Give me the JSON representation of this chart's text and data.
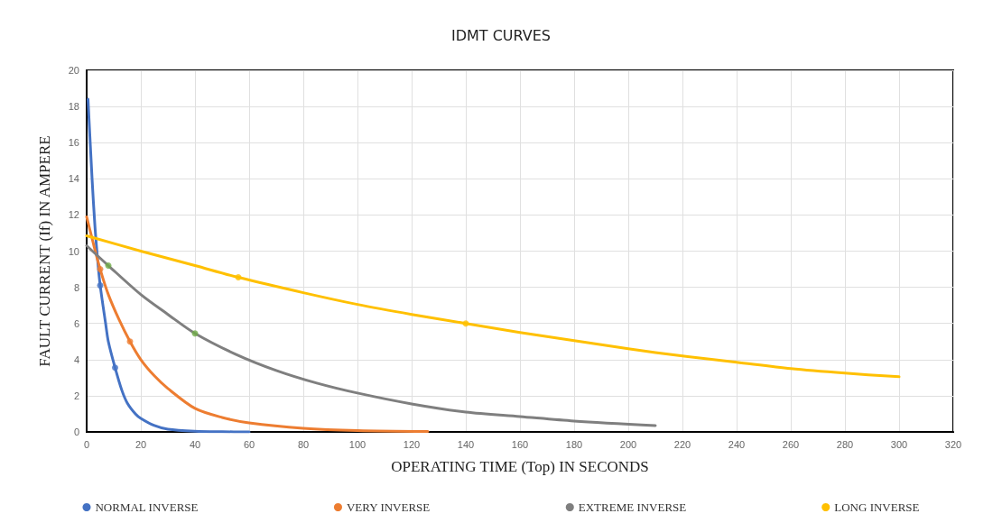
{
  "chart_data": {
    "type": "line",
    "title": "IDMT CURVES",
    "xlabel": "OPERATING TIME (Top) IN SECONDS",
    "ylabel": "FAULT CURRENT (If) IN AMPERE",
    "xlim": [
      0,
      320
    ],
    "xticks": [
      0,
      20,
      40,
      60,
      80,
      100,
      120,
      140,
      160,
      180,
      200,
      220,
      240,
      260,
      280,
      300,
      320
    ],
    "ylim": [
      0,
      20
    ],
    "yticks": [
      0,
      2,
      4,
      6,
      8,
      10,
      12,
      14,
      16,
      18,
      20
    ],
    "grid": true,
    "legend": "bottom",
    "marker": "none",
    "series": [
      {
        "name": "NORMAL INVERSE",
        "color": "#4472c4",
        "x": [
          0.5,
          2,
          3,
          4,
          5,
          7,
          8,
          10.5,
          13,
          15,
          18,
          20,
          25,
          30,
          40,
          50,
          60
        ],
        "values": [
          18.4,
          14,
          11.5,
          9.6,
          8.1,
          6,
          5,
          3.55,
          2.3,
          1.6,
          1,
          0.75,
          0.35,
          0.15,
          0.04,
          0.01,
          0
        ]
      },
      {
        "name": "VERY INVERSE",
        "color": "#ed7d31",
        "x": [
          0,
          2.5,
          5,
          8,
          12,
          16,
          20,
          25,
          30,
          40,
          50,
          60,
          80,
          100,
          126
        ],
        "values": [
          11.9,
          10.4,
          9,
          7.6,
          6.2,
          5,
          4,
          3.1,
          2.4,
          1.3,
          0.8,
          0.5,
          0.2,
          0.07,
          0.02
        ]
      },
      {
        "name": "EXTREME INVERSE",
        "color": "#7f7f7f",
        "x": [
          0,
          8,
          20,
          30,
          40,
          55,
          70,
          85,
          100,
          120,
          140,
          160,
          180,
          210
        ],
        "values": [
          10.3,
          9.2,
          7.6,
          6.5,
          5.45,
          4.3,
          3.4,
          2.7,
          2.15,
          1.55,
          1.1,
          0.85,
          0.6,
          0.35
        ]
      },
      {
        "name": "LONG INVERSE",
        "color": "#ffc000",
        "x": [
          0,
          20,
          40,
          56,
          80,
          100,
          120,
          140,
          160,
          180,
          200,
          220,
          240,
          260,
          280,
          300
        ],
        "values": [
          10.85,
          10,
          9.2,
          8.55,
          7.7,
          7.05,
          6.5,
          6,
          5.5,
          5.05,
          4.6,
          4.2,
          3.85,
          3.5,
          3.25,
          3.05
        ]
      },
      {
        "type": "scatter",
        "color": "#4472c4",
        "x": [
          5,
          10.5
        ],
        "values": [
          8.1,
          3.55
        ]
      },
      {
        "type": "scatter",
        "color": "#ed7d31",
        "x": [
          5,
          16
        ],
        "values": [
          9,
          5
        ]
      },
      {
        "type": "scatter",
        "color": "#70ad47",
        "x": [
          8,
          40
        ],
        "values": [
          9.2,
          5.45
        ]
      },
      {
        "type": "scatter",
        "color": "#ffc000",
        "x": [
          56,
          140
        ],
        "values": [
          8.55,
          6
        ]
      }
    ]
  }
}
